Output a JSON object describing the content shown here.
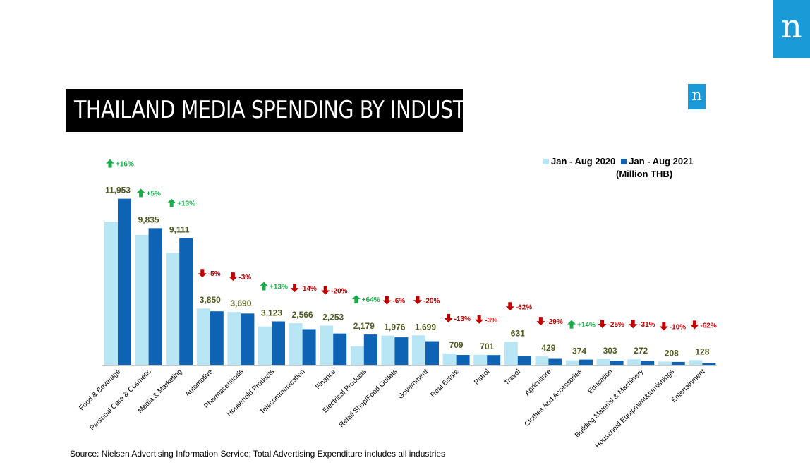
{
  "title": "THAILAND MEDIA SPENDING BY INDUSTRY",
  "logo": {
    "letter": "n"
  },
  "legend": {
    "unit": "(Million THB)"
  },
  "source": "Source: Nielsen Advertising Information Service; Total Advertising Expenditure includes all industries",
  "colors": {
    "series_2020": "#b8e6f5",
    "series_2021": "#0e63b5",
    "increase": "#1aab4b",
    "decrease": "#c00000",
    "value_label": "#4d5a1e",
    "title_bg": "#000000",
    "logo_bg": "#1a9ad6"
  },
  "chart_data": {
    "type": "bar",
    "categories": [
      "Food & Beverage",
      "Personal Care & Cosmetic",
      "Media & Marketing",
      "Automotive",
      "Pharmaceuticals",
      "Household Products",
      "Telecommunication",
      "Finance",
      "Electrical Products",
      "Retail Shop/Food Outlets",
      "Government",
      "Real Estate",
      "Patrol",
      "Travel",
      "Agriculture",
      "Clothes And Accessories",
      "Education",
      "Building Material & Machinery",
      "Household Equipment&furnishings",
      "Entertainment"
    ],
    "series": [
      {
        "name": "Jan - Aug 2020",
        "values": [
          10300,
          9350,
          8060,
          4050,
          3800,
          2760,
          2990,
          2820,
          1330,
          2100,
          2120,
          815,
          723,
          1660,
          605,
          328,
          404,
          395,
          231,
          338
        ]
      },
      {
        "name": "Jan - Aug 2021",
        "values": [
          11953,
          9835,
          9111,
          3850,
          3690,
          3123,
          2566,
          2253,
          2179,
          1976,
          1699,
          709,
          701,
          631,
          429,
          374,
          303,
          272,
          208,
          128
        ]
      }
    ],
    "value_labels": [
      "11,953",
      "9,835",
      "9,111",
      "3,850",
      "3,690",
      "3,123",
      "2,566",
      "2,253",
      "2,179",
      "1,976",
      "1,699",
      "709",
      "701",
      "631",
      "429",
      "374",
      "303",
      "272",
      "208",
      "128"
    ],
    "changes": [
      "+16%",
      "+5%",
      "+13%",
      "-5%",
      "-3%",
      "+13%",
      "-14%",
      "-20%",
      "+64%",
      "-6%",
      "-20%",
      "-13%",
      "-3%",
      "-62%",
      "-29%",
      "+14%",
      "-25%",
      "-31%",
      "-10%",
      "-62%"
    ],
    "ylim": [
      0,
      13000
    ],
    "legend_position": "top-right",
    "grid": false
  }
}
